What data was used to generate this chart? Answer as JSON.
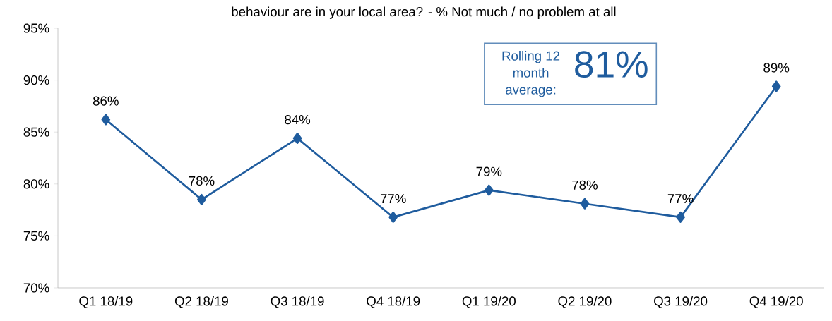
{
  "chart_data": {
    "type": "line",
    "title": "behaviour are in your local area? - % Not much / no problem at all",
    "categories": [
      "Q1 18/19",
      "Q2 18/19",
      "Q3 18/19",
      "Q4 18/19",
      "Q1 19/20",
      "Q2 19/20",
      "Q3 19/20",
      "Q4 19/20"
    ],
    "values": [
      86.2,
      78.5,
      84.4,
      76.8,
      79.4,
      78.1,
      76.8,
      89.4
    ],
    "value_labels": [
      "86%",
      "78%",
      "84%",
      "77%",
      "79%",
      "78%",
      "77%",
      "89%"
    ],
    "color": "#1f5c9e",
    "marker": "diamond",
    "line_style": "solid",
    "ylim": [
      70,
      95
    ],
    "yticks": [
      {
        "value": 70,
        "label": "70%"
      },
      {
        "value": 75,
        "label": "75%"
      },
      {
        "value": 80,
        "label": "80%"
      },
      {
        "value": 85,
        "label": "85%"
      },
      {
        "value": 90,
        "label": "90%"
      },
      {
        "value": 95,
        "label": "95%"
      }
    ],
    "annotations": [
      "Rolling 12 month average:",
      "81%"
    ]
  }
}
